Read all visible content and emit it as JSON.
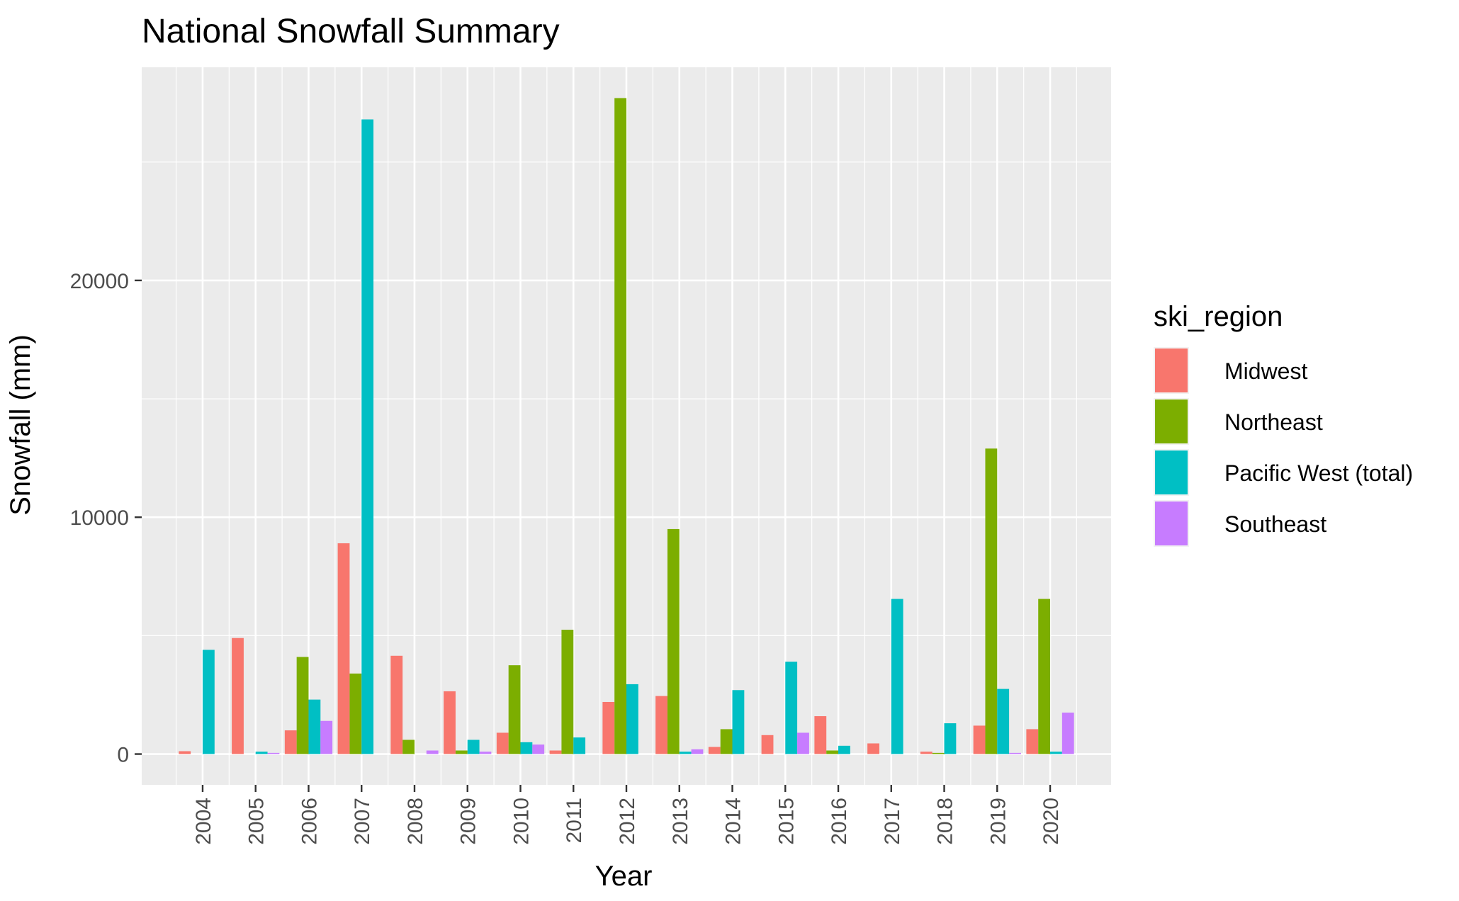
{
  "chart_data": {
    "type": "bar",
    "title": "National Snowfall Summary",
    "xlabel": "Year",
    "ylabel": "Snowfall (mm)",
    "categories": [
      "2004",
      "2005",
      "2006",
      "2007",
      "2008",
      "2009",
      "2010",
      "2011",
      "2012",
      "2013",
      "2014",
      "2015",
      "2016",
      "2017",
      "2018",
      "2019",
      "2020"
    ],
    "yticks": [
      "0",
      "10000",
      "20000"
    ],
    "ylim": [
      -1300,
      29000
    ],
    "grid": true,
    "legend": {
      "title": "ski_region",
      "position": "right"
    },
    "series": [
      {
        "name": "Midwest",
        "color": "#F8766D",
        "values": [
          120,
          4900,
          1000,
          8900,
          4150,
          2650,
          900,
          150,
          2200,
          2450,
          300,
          800,
          1600,
          450,
          100,
          1200,
          1050
        ]
      },
      {
        "name": "Northeast",
        "color": "#7CAE00",
        "values": [
          0,
          0,
          4100,
          3400,
          600,
          150,
          3750,
          5250,
          27700,
          9500,
          1050,
          0,
          150,
          0,
          50,
          12900,
          6550
        ]
      },
      {
        "name": "Pacific West (total)",
        "color": "#00BFC4",
        "values": [
          4400,
          100,
          2300,
          26800,
          0,
          600,
          500,
          700,
          2950,
          100,
          2700,
          3900,
          350,
          6550,
          1300,
          2750,
          100
        ]
      },
      {
        "name": "Southeast",
        "color": "#C77CFF",
        "values": [
          0,
          50,
          1400,
          0,
          150,
          100,
          400,
          0,
          0,
          200,
          0,
          900,
          0,
          0,
          0,
          50,
          1750
        ]
      }
    ]
  }
}
